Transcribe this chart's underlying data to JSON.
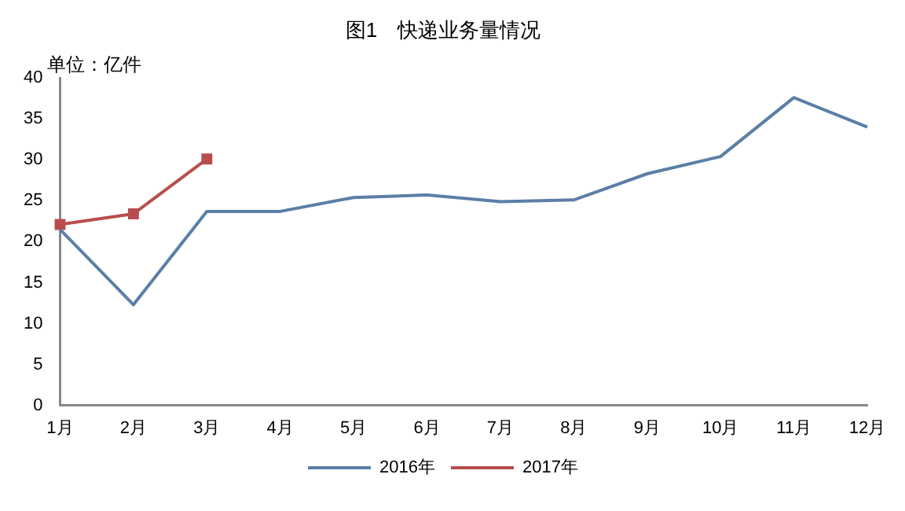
{
  "chart_data": {
    "type": "line",
    "title": "图1　快递业务量情况",
    "ylabel": "单位：亿件",
    "categories": [
      "1月",
      "2月",
      "3月",
      "4月",
      "5月",
      "6月",
      "7月",
      "8月",
      "9月",
      "10月",
      "11月",
      "12月"
    ],
    "series": [
      {
        "name": "2016年",
        "color": "#5b7fa6",
        "marker": "none",
        "values": [
          21.5,
          12.3,
          23.7,
          23.7,
          25.4,
          25.7,
          24.9,
          25.1,
          28.3,
          30.4,
          37.6,
          34.0
        ]
      },
      {
        "name": "2017年",
        "color": "#b94d4d",
        "marker": "square",
        "values": [
          22.1,
          23.4,
          30.1,
          null,
          null,
          null,
          null,
          null,
          null,
          null,
          null,
          null
        ]
      }
    ],
    "ylim": [
      0,
      40
    ],
    "yticks": [
      0,
      5,
      10,
      15,
      20,
      25,
      30,
      35,
      40
    ],
    "grid": false,
    "legend": "bottom",
    "line_style": "solid"
  }
}
